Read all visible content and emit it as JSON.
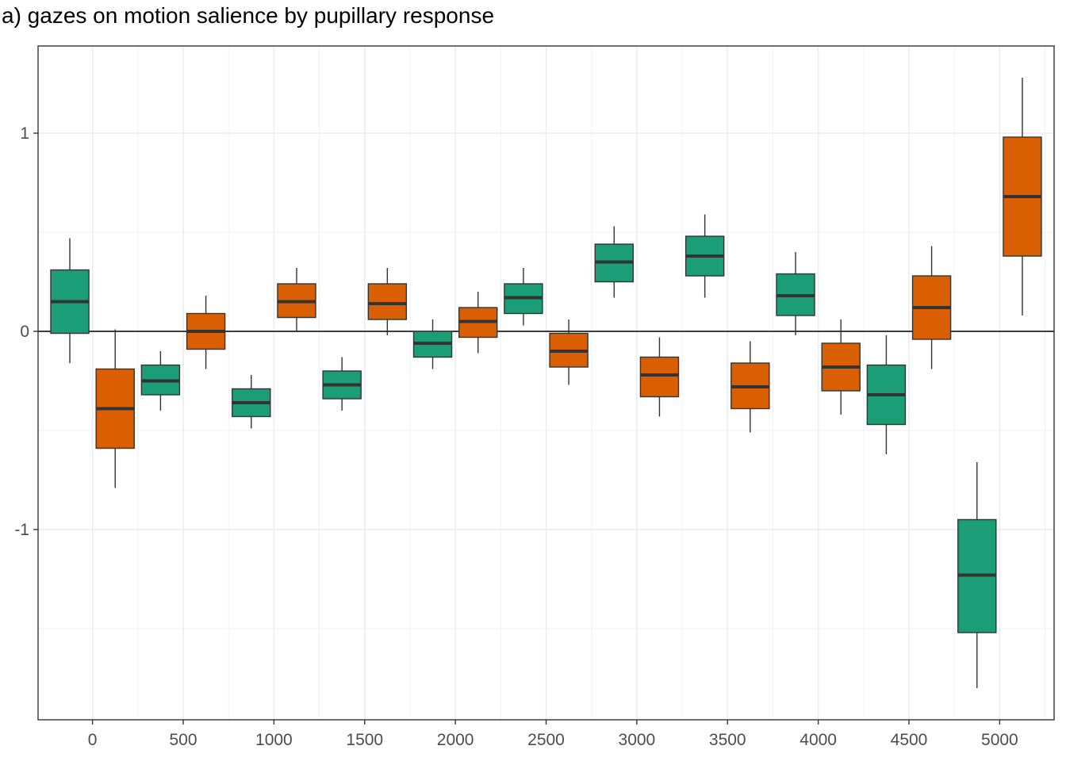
{
  "chart_data": {
    "type": "box",
    "title": "a) gazes on motion salience by pupillary response",
    "xlabel": "",
    "ylabel": "",
    "x_ticks": [
      0,
      500,
      1000,
      1500,
      2000,
      2500,
      3000,
      3500,
      4000,
      4500,
      5000
    ],
    "y_ticks": [
      -1,
      0,
      1
    ],
    "xlim": [
      -300,
      5300
    ],
    "ylim": [
      -1.96,
      1.44
    ],
    "grid": true,
    "reference_line_y": 0,
    "colors": {
      "green": "#1b9e77",
      "orange": "#d95f02"
    },
    "boxes": [
      {
        "x": -125,
        "color": "green",
        "lower_whisker": -0.16,
        "q1": -0.01,
        "median": 0.15,
        "q3": 0.31,
        "upper_whisker": 0.47
      },
      {
        "x": 125,
        "color": "orange",
        "lower_whisker": -0.79,
        "q1": -0.59,
        "median": -0.39,
        "q3": -0.19,
        "upper_whisker": 0.01
      },
      {
        "x": 375,
        "color": "green",
        "lower_whisker": -0.4,
        "q1": -0.32,
        "median": -0.25,
        "q3": -0.17,
        "upper_whisker": -0.1
      },
      {
        "x": 625,
        "color": "orange",
        "lower_whisker": -0.19,
        "q1": -0.09,
        "median": 0.0,
        "q3": 0.09,
        "upper_whisker": 0.18
      },
      {
        "x": 875,
        "color": "green",
        "lower_whisker": -0.49,
        "q1": -0.43,
        "median": -0.36,
        "q3": -0.29,
        "upper_whisker": -0.22
      },
      {
        "x": 1125,
        "color": "orange",
        "lower_whisker": 0.0,
        "q1": 0.07,
        "median": 0.15,
        "q3": 0.24,
        "upper_whisker": 0.32
      },
      {
        "x": 1375,
        "color": "green",
        "lower_whisker": -0.4,
        "q1": -0.34,
        "median": -0.27,
        "q3": -0.2,
        "upper_whisker": -0.13
      },
      {
        "x": 1625,
        "color": "orange",
        "lower_whisker": -0.02,
        "q1": 0.06,
        "median": 0.14,
        "q3": 0.24,
        "upper_whisker": 0.32
      },
      {
        "x": 1875,
        "color": "green",
        "lower_whisker": -0.19,
        "q1": -0.13,
        "median": -0.06,
        "q3": 0.0,
        "upper_whisker": 0.06
      },
      {
        "x": 2125,
        "color": "orange",
        "lower_whisker": -0.11,
        "q1": -0.03,
        "median": 0.05,
        "q3": 0.12,
        "upper_whisker": 0.2
      },
      {
        "x": 2375,
        "color": "green",
        "lower_whisker": 0.03,
        "q1": 0.09,
        "median": 0.17,
        "q3": 0.24,
        "upper_whisker": 0.32
      },
      {
        "x": 2625,
        "color": "orange",
        "lower_whisker": -0.27,
        "q1": -0.18,
        "median": -0.1,
        "q3": -0.01,
        "upper_whisker": 0.06
      },
      {
        "x": 2875,
        "color": "green",
        "lower_whisker": 0.17,
        "q1": 0.25,
        "median": 0.35,
        "q3": 0.44,
        "upper_whisker": 0.53
      },
      {
        "x": 3125,
        "color": "orange",
        "lower_whisker": -0.43,
        "q1": -0.33,
        "median": -0.22,
        "q3": -0.13,
        "upper_whisker": -0.03
      },
      {
        "x": 3375,
        "color": "green",
        "lower_whisker": 0.17,
        "q1": 0.28,
        "median": 0.38,
        "q3": 0.48,
        "upper_whisker": 0.59
      },
      {
        "x": 3625,
        "color": "orange",
        "lower_whisker": -0.51,
        "q1": -0.39,
        "median": -0.28,
        "q3": -0.16,
        "upper_whisker": -0.05
      },
      {
        "x": 3875,
        "color": "green",
        "lower_whisker": -0.02,
        "q1": 0.08,
        "median": 0.18,
        "q3": 0.29,
        "upper_whisker": 0.4
      },
      {
        "x": 4125,
        "color": "orange",
        "lower_whisker": -0.42,
        "q1": -0.3,
        "median": -0.18,
        "q3": -0.06,
        "upper_whisker": 0.06
      },
      {
        "x": 4375,
        "color": "green",
        "lower_whisker": -0.62,
        "q1": -0.47,
        "median": -0.32,
        "q3": -0.17,
        "upper_whisker": -0.02
      },
      {
        "x": 4625,
        "color": "orange",
        "lower_whisker": -0.19,
        "q1": -0.04,
        "median": 0.12,
        "q3": 0.28,
        "upper_whisker": 0.43
      },
      {
        "x": 4875,
        "color": "green",
        "lower_whisker": -1.8,
        "q1": -1.52,
        "median": -1.23,
        "q3": -0.95,
        "upper_whisker": -0.66
      },
      {
        "x": 5125,
        "color": "orange",
        "lower_whisker": 0.08,
        "q1": 0.38,
        "median": 0.68,
        "q3": 0.98,
        "upper_whisker": 1.28
      }
    ]
  }
}
